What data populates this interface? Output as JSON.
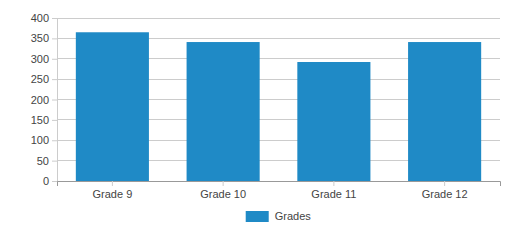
{
  "chart_data": {
    "type": "bar",
    "categories": [
      "Grade 9",
      "Grade 10",
      "Grade 11",
      "Grade 12"
    ],
    "series": [
      {
        "name": "Grades",
        "color": "#1f8ac6",
        "values": [
          365,
          341,
          292,
          341
        ]
      }
    ],
    "ylim": [
      0,
      400
    ],
    "yticks": [
      0,
      50,
      100,
      150,
      200,
      250,
      300,
      350,
      400
    ],
    "grid": true,
    "legend": "bottom"
  }
}
